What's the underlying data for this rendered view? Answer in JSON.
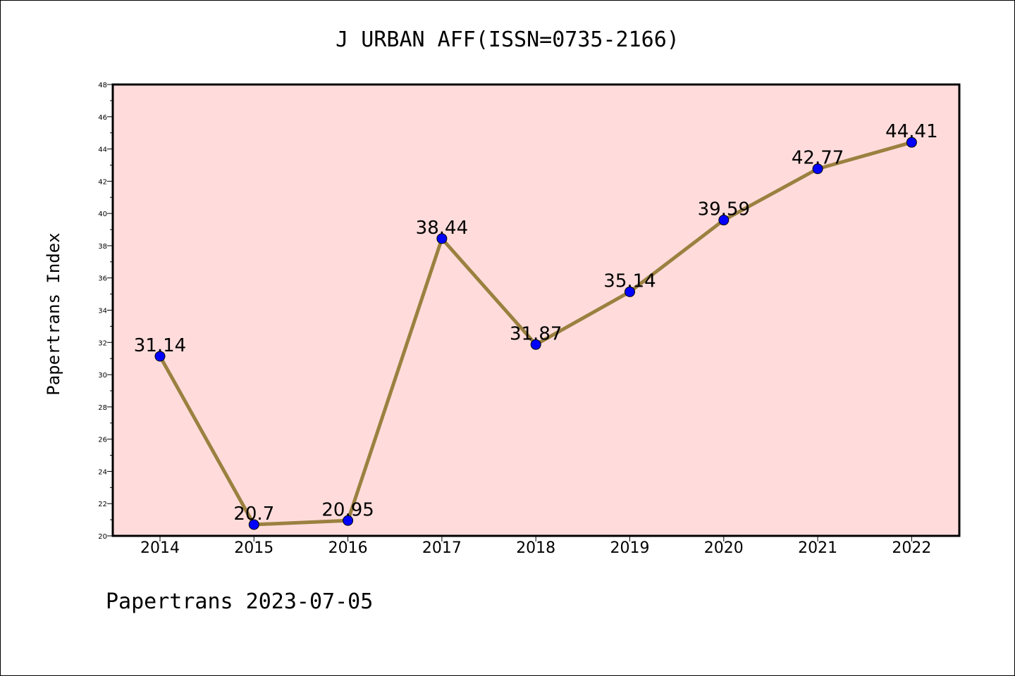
{
  "chart_data": {
    "type": "line",
    "title": "J URBAN AFF(ISSN=0735-2166)",
    "ylabel": "Papertrans Index",
    "xlabel": "",
    "footer": "Papertrans 2023-07-05",
    "categories": [
      "2014",
      "2015",
      "2016",
      "2017",
      "2018",
      "2019",
      "2020",
      "2021",
      "2022"
    ],
    "values": [
      31.14,
      20.7,
      20.95,
      38.44,
      31.87,
      35.14,
      39.59,
      42.77,
      44.41
    ],
    "data_labels": [
      "31.14",
      "20.7",
      "20.95",
      "38.44",
      "31.87",
      "35.14",
      "39.59",
      "42.77",
      "44.41"
    ],
    "ylim": [
      20,
      48
    ],
    "yticks": [
      20,
      22,
      24,
      26,
      28,
      30,
      32,
      34,
      36,
      38,
      40,
      42,
      44,
      46,
      48
    ],
    "ytick_labels": [
      "20",
      "22",
      "24",
      "26",
      "28",
      "30",
      "32",
      "34",
      "36",
      "38",
      "40",
      "42",
      "44",
      "46",
      "48"
    ],
    "grid": false,
    "colors": {
      "plot_background": "#ffdcdb",
      "line": "#9b8040",
      "marker": "#0000ff"
    }
  }
}
